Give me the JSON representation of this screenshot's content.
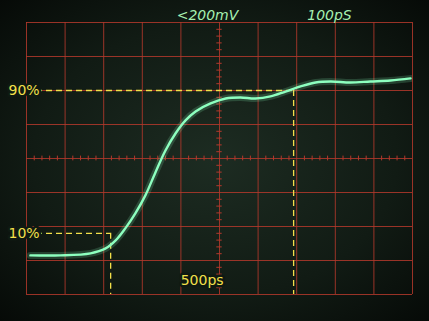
{
  "chart_data": {
    "type": "line",
    "y_label": "<200mV",
    "x_label": "100pS",
    "x": [
      10,
      88,
      166,
      205,
      231,
      256,
      282,
      308,
      334,
      360,
      386,
      412,
      438,
      477,
      516,
      554,
      593,
      632,
      671,
      710,
      749,
      788,
      839,
      891,
      943,
      995
    ],
    "values": [
      -570,
      -570,
      -558,
      -529,
      -482,
      -411,
      -323,
      -217,
      -82,
      47,
      147,
      224,
      277,
      324,
      353,
      359,
      353,
      365,
      394,
      424,
      447,
      453,
      447,
      453,
      459,
      471
    ],
    "color": "#8dffbf",
    "xlim": [
      0,
      1000
    ],
    "xticks": [
      0,
      100,
      200,
      300,
      400,
      500,
      600,
      700,
      800,
      900,
      1000
    ],
    "ylim": [
      -800,
      800
    ],
    "yticks": [
      -800,
      -600,
      -400,
      -200,
      0,
      200,
      400,
      600,
      800
    ],
    "grid": true,
    "tick_labels": false,
    "annotations": [
      {
        "text": "90%",
        "y": 400,
        "x": 692
      },
      {
        "text": "10%",
        "y": -440,
        "x": 218
      }
    ],
    "span_label": "500ps"
  }
}
